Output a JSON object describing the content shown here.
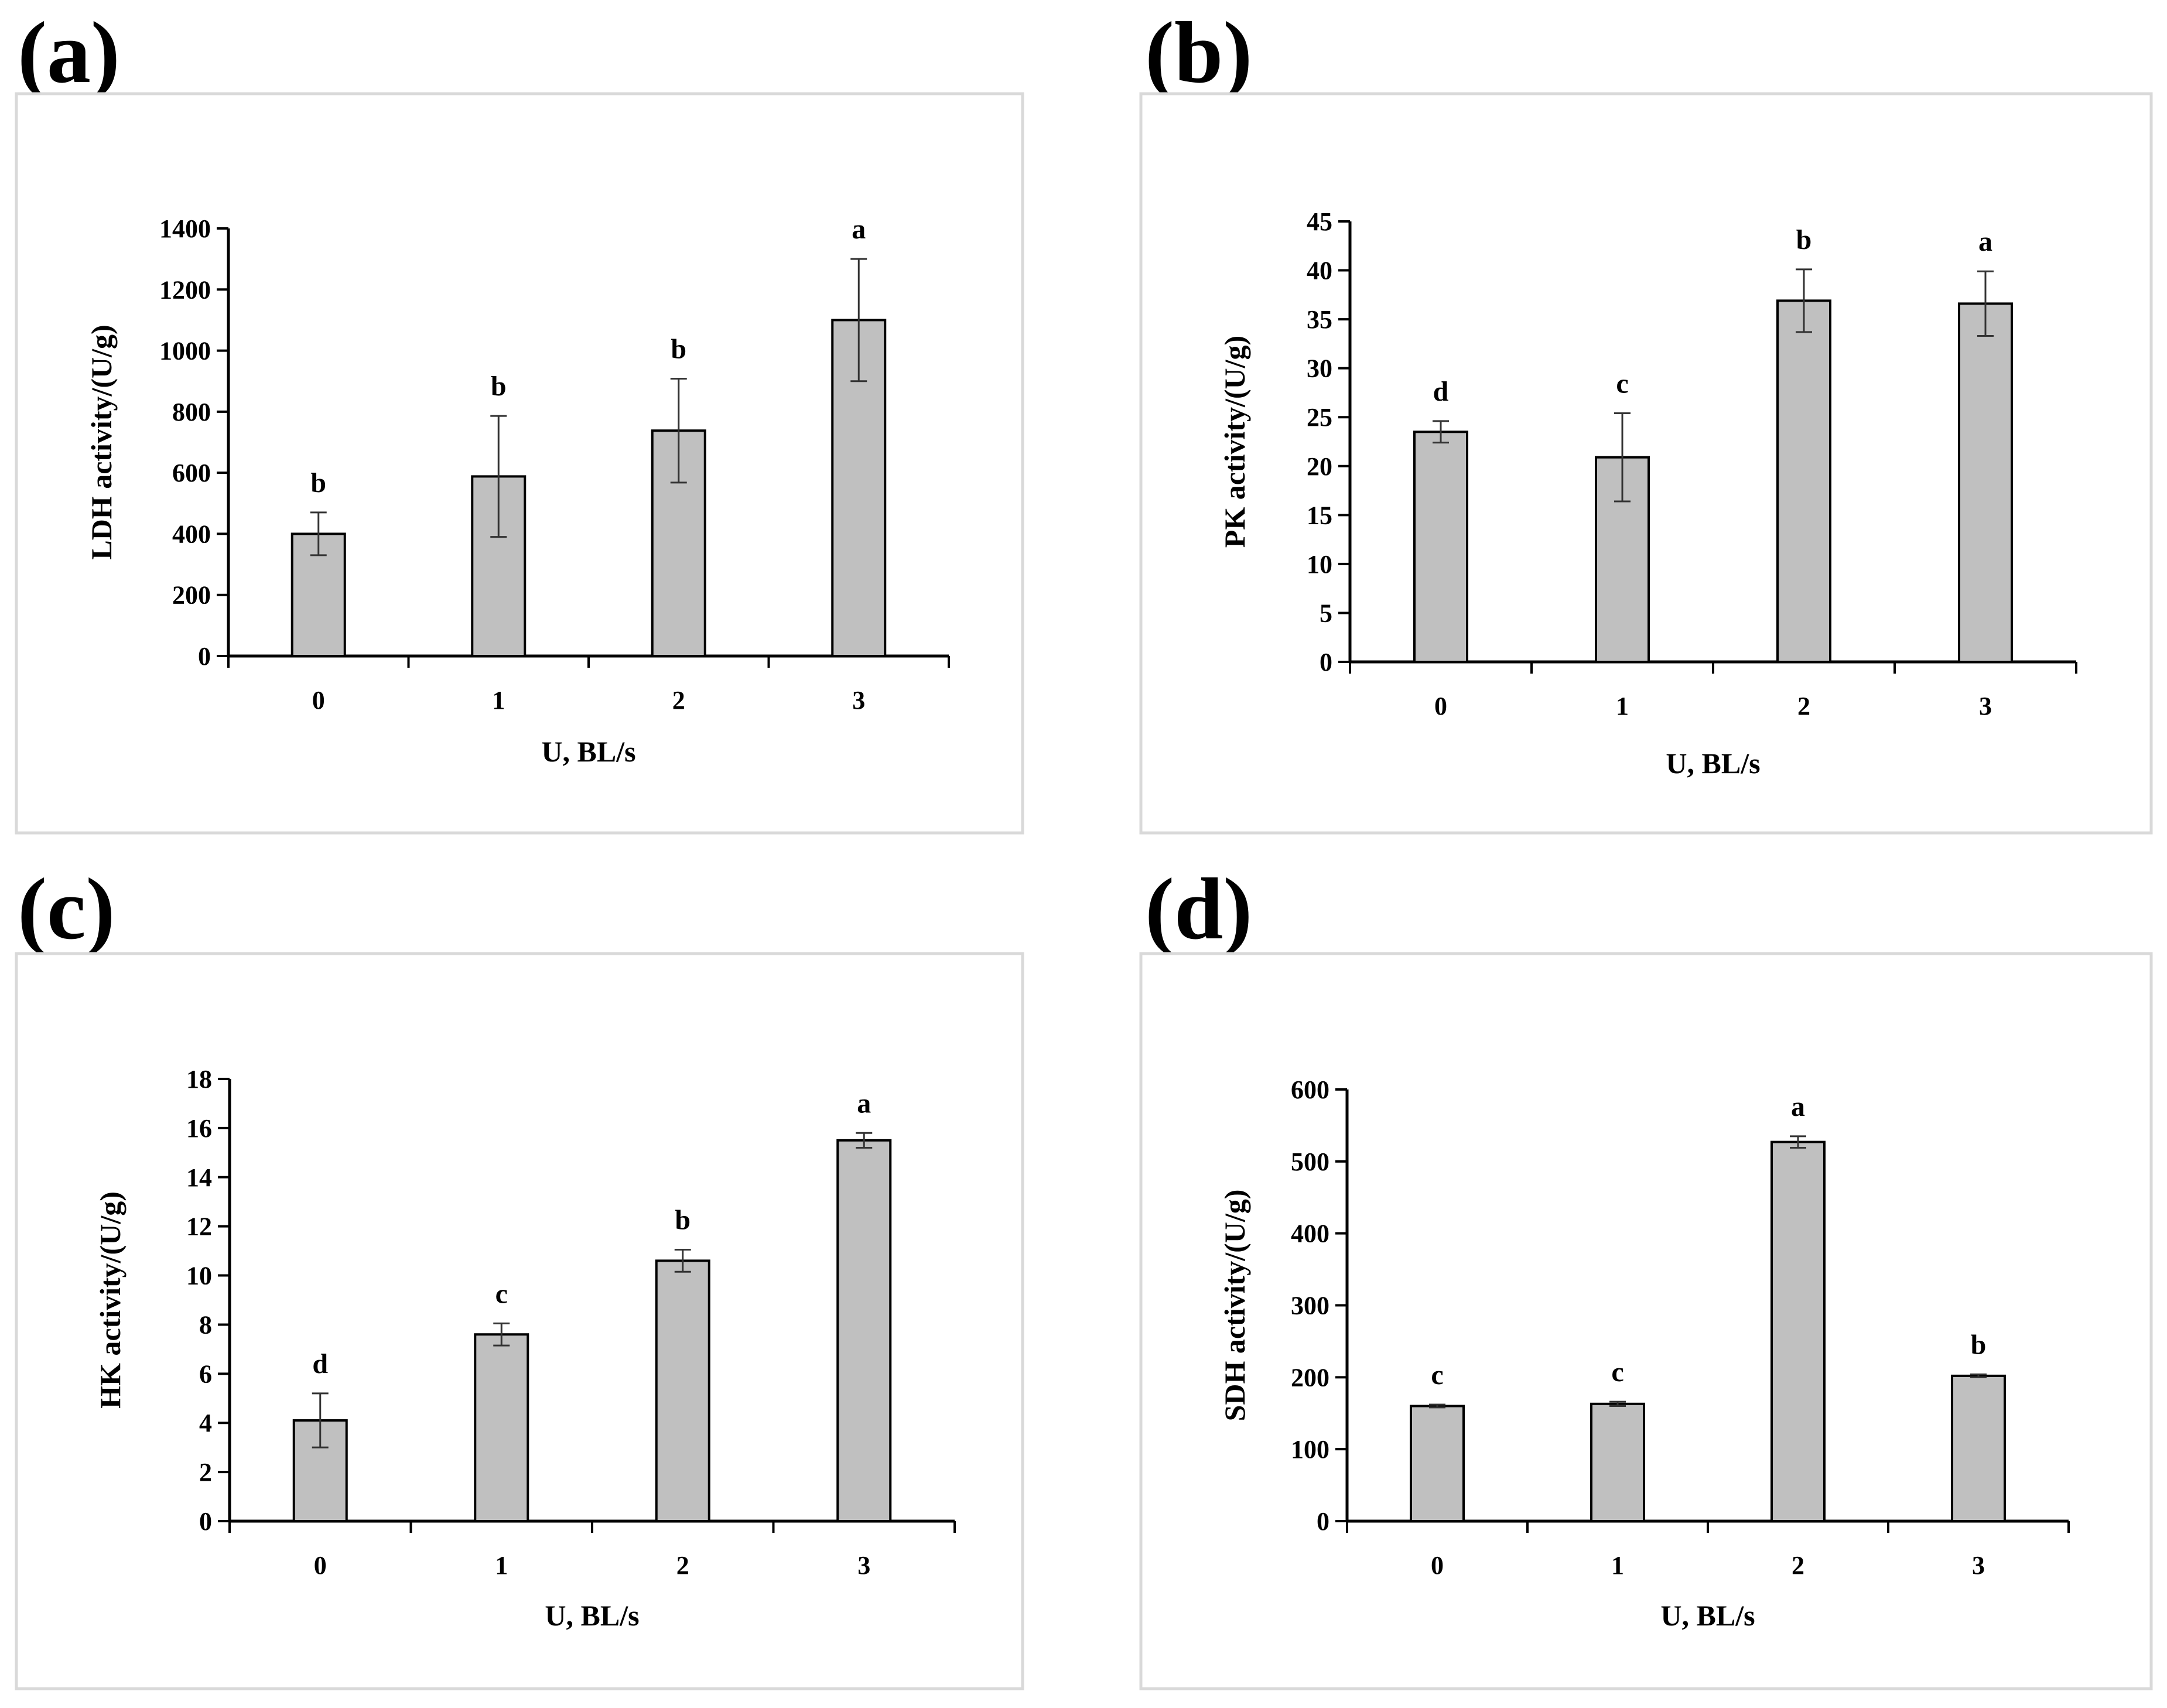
{
  "chart_data": [
    {
      "panel": "(a)",
      "type": "bar",
      "categories": [
        "0",
        "1",
        "2",
        "3"
      ],
      "values": [
        400,
        588,
        738,
        1100
      ],
      "errors": [
        70,
        198,
        170,
        200
      ],
      "significance": [
        "b",
        "b",
        "b",
        "a"
      ],
      "xlabel": "U, BL/s",
      "ylabel": "LDH activity/(U/g)",
      "ylim": [
        0,
        1400
      ],
      "yticks": [
        "0",
        "200",
        "400",
        "600",
        "800",
        "1000",
        "1200",
        "1400"
      ],
      "bar_color": "#c0c0c0"
    },
    {
      "panel": "(b)",
      "type": "bar",
      "categories": [
        "0",
        "1",
        "2",
        "3"
      ],
      "values": [
        23.5,
        20.9,
        36.9,
        36.6
      ],
      "errors": [
        1.1,
        4.5,
        3.2,
        3.3
      ],
      "significance": [
        "d",
        "c",
        "b",
        "a"
      ],
      "xlabel": "U, BL/s",
      "ylabel": "PK activity/(U/g)",
      "ylim": [
        0,
        45
      ],
      "yticks": [
        "0",
        "5",
        "10",
        "15",
        "20",
        "25",
        "30",
        "35",
        "40",
        "45"
      ],
      "bar_color": "#c0c0c0"
    },
    {
      "panel": "(c)",
      "type": "bar",
      "categories": [
        "0",
        "1",
        "2",
        "3"
      ],
      "values": [
        4.1,
        7.6,
        10.6,
        15.5
      ],
      "errors": [
        1.1,
        0.45,
        0.45,
        0.3
      ],
      "significance": [
        "d",
        "c",
        "b",
        "a"
      ],
      "xlabel": "U, BL/s",
      "ylabel": "HK activity/(U/g)",
      "ylim": [
        0,
        18
      ],
      "yticks": [
        "0",
        "2",
        "4",
        "6",
        "8",
        "10",
        "12",
        "14",
        "16",
        "18"
      ],
      "bar_color": "#c0c0c0"
    },
    {
      "panel": "(d)",
      "type": "bar",
      "categories": [
        "0",
        "1",
        "2",
        "3"
      ],
      "values": [
        160,
        163,
        527,
        202
      ],
      "errors": [
        2,
        3,
        8,
        2
      ],
      "significance": [
        "c",
        "c",
        "a",
        "b"
      ],
      "xlabel": "U, BL/s",
      "ylabel": "SDH activity/(U/g)",
      "ylim": [
        0,
        600
      ],
      "yticks": [
        "0",
        "100",
        "200",
        "300",
        "400",
        "500",
        "600"
      ],
      "bar_color": "#c0c0c0"
    }
  ]
}
